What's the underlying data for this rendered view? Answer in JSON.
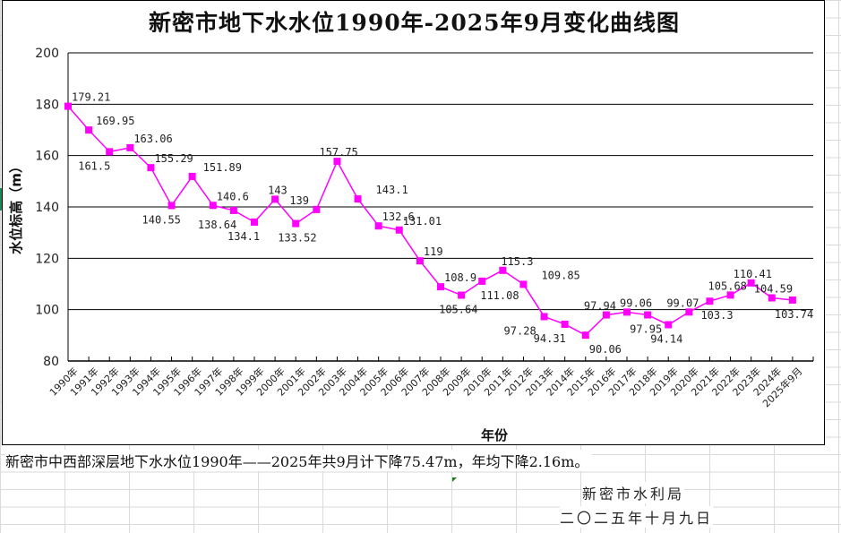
{
  "chart_data": {
    "type": "line",
    "title": "新密市地下水水位1990年-2025年9月变化曲线图",
    "xlabel": "年份",
    "ylabel": "水位标高（m）",
    "ylim": [
      80,
      200
    ],
    "yticks": [
      80,
      100,
      120,
      140,
      160,
      180,
      200
    ],
    "grid": true,
    "legend": "none",
    "categories": [
      "1990年",
      "1991年",
      "1992年",
      "1993年",
      "1994年",
      "1995年",
      "1996年",
      "1997年",
      "1998年",
      "1999年",
      "2000年",
      "2001年",
      "2002年",
      "2003年",
      "2004年",
      "2005年",
      "2006年",
      "2007年",
      "2008年",
      "2009年",
      "2010年",
      "2011年",
      "2012年",
      "2013年",
      "2014年",
      "2015年",
      "2016年",
      "2017年",
      "2018年",
      "2019年",
      "2020年",
      "2021年",
      "2022年",
      "2023年",
      "2024年",
      "2025年9月"
    ],
    "series": [
      {
        "name": "水位标高",
        "color": "#ff00ff",
        "values": [
          179.21,
          169.95,
          161.5,
          163.06,
          155.29,
          140.55,
          151.89,
          140.6,
          138.64,
          134.1,
          143,
          133.52,
          139,
          157.75,
          143.1,
          132.6,
          131.01,
          119,
          108.9,
          105.64,
          111.08,
          115.3,
          109.85,
          97.28,
          94.31,
          90.06,
          97.94,
          99.06,
          97.95,
          94.14,
          99.07,
          103.3,
          105.68,
          110.41,
          104.59,
          103.74
        ],
        "labels": [
          "179.21",
          "169.95",
          "161.5",
          "163.06",
          "155.29",
          "140.55",
          "151.89",
          "140.6",
          "138.64",
          "134.1",
          "143",
          "133.52",
          "139",
          "157.75",
          "143.1",
          "132.6",
          "131.01",
          "119",
          "108.9",
          "105.64",
          "111.08",
          "115.3",
          "109.85",
          "97.28",
          "94.31",
          "90.06",
          "97.94",
          "99.06",
          "97.95",
          "94.14",
          "99.07",
          "103.3",
          "105.68",
          "110.41",
          "104.59",
          "103.74"
        ]
      }
    ]
  },
  "note": "新密市中西部深层地下水水位1990年——2025年共9月计下降75.47m，年均下降2.16m。",
  "signature": {
    "org": "新密市水利局",
    "date": "二〇二五年十月九日"
  }
}
